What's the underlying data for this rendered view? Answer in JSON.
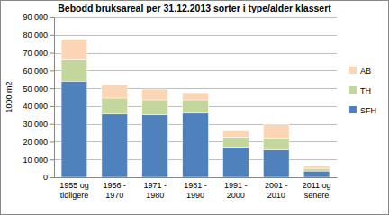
{
  "chart_data": {
    "type": "bar",
    "title": "Bebodd bruksareal per 31.12.2013 sorter i type/alder klassert",
    "y_label": "1000 m2",
    "categories": [
      "1955 og tidligere",
      "1956 - 1970",
      "1971 - 1980",
      "1981 - 1990",
      "1991 - 2000",
      "2001 - 2010",
      "2011 og senere"
    ],
    "series": [
      {
        "name": "SFH",
        "color": "#4f81bd",
        "values": [
          54000,
          35500,
          35000,
          36000,
          17000,
          15500,
          3500
        ]
      },
      {
        "name": "TH",
        "color": "#c3d69b",
        "values": [
          12000,
          9000,
          8500,
          7500,
          5500,
          6500,
          1500
        ]
      },
      {
        "name": "AB",
        "color": "#fcd5b5",
        "values": [
          11500,
          7500,
          6000,
          4000,
          3500,
          7500,
          1500
        ]
      }
    ],
    "ylim": [
      0,
      90000
    ],
    "yticks": [
      0,
      {
        "value": 10000,
        "label": "10 000"
      },
      {
        "value": 20000,
        "label": "20 000"
      },
      {
        "value": 30000,
        "label": "30 000"
      },
      {
        "value": 40000,
        "label": "40 000"
      },
      {
        "value": 50000,
        "label": "50 000"
      },
      {
        "value": 60000,
        "label": "60 000"
      },
      {
        "value": 70000,
        "label": "70 000"
      },
      {
        "value": 80000,
        "label": "80 000"
      },
      {
        "value": 90000,
        "label": "90 000"
      }
    ],
    "stacked": true,
    "grid": true,
    "legend": "right"
  }
}
